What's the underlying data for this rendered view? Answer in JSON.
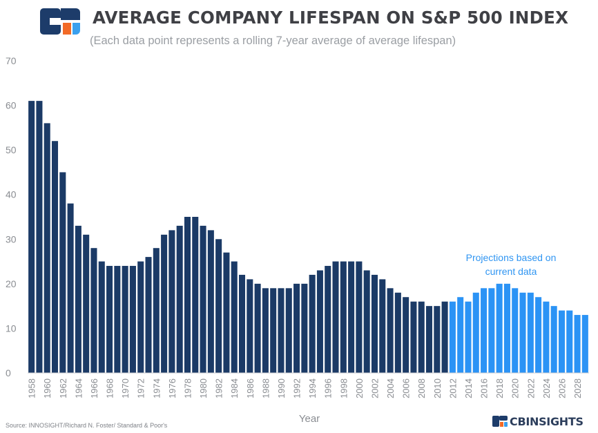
{
  "header": {
    "title": "AVERAGE COMPANY LIFESPAN ON S&P 500 INDEX",
    "subtitle": "(Each data point represents a rolling 7-year average of average lifespan)"
  },
  "colors": {
    "historical": "#1b3a66",
    "projection": "#2b93f5",
    "annotation": "#2f95f2",
    "axis_text": "#8a8d92",
    "logo_navy": "#1d3c6a",
    "logo_orange": "#f26a27",
    "logo_blue": "#3aa0ee"
  },
  "annotation": {
    "line1": "Projections based on",
    "line2": "current data"
  },
  "footer": {
    "source": "Source: INNOSIGHT/Richard N. Foster/ Standard & Poor's",
    "brand": "CBINSIGHTS"
  },
  "icons": {
    "logo": "cb-insights-logo-icon",
    "brand_mark": "cb-insights-mark-icon"
  },
  "chart_data": {
    "type": "bar",
    "title": "AVERAGE COMPANY LIFESPAN ON S&P 500 INDEX",
    "subtitle": "(Each data point represents a rolling 7-year average of average lifespan)",
    "xlabel": "Year",
    "ylabel": "",
    "ylim": [
      0,
      70
    ],
    "yticks": [
      0,
      10,
      20,
      30,
      40,
      50,
      60,
      70
    ],
    "grid": false,
    "categories": [
      1958,
      1959,
      1960,
      1961,
      1962,
      1963,
      1964,
      1965,
      1966,
      1967,
      1968,
      1969,
      1970,
      1971,
      1972,
      1973,
      1974,
      1975,
      1976,
      1977,
      1978,
      1979,
      1980,
      1981,
      1982,
      1983,
      1984,
      1985,
      1986,
      1987,
      1988,
      1989,
      1990,
      1991,
      1992,
      1993,
      1994,
      1995,
      1996,
      1997,
      1998,
      1999,
      2000,
      2001,
      2002,
      2003,
      2004,
      2005,
      2006,
      2007,
      2008,
      2009,
      2010,
      2011,
      2012,
      2013,
      2014,
      2015,
      2016,
      2017,
      2018,
      2019,
      2020,
      2021,
      2022,
      2023,
      2024,
      2025,
      2026,
      2027,
      2028,
      2029
    ],
    "xtick_labels": [
      1958,
      1960,
      1962,
      1964,
      1966,
      1968,
      1970,
      1972,
      1974,
      1976,
      1978,
      1980,
      1982,
      1984,
      1986,
      1988,
      1990,
      1992,
      1994,
      1996,
      1998,
      2000,
      2002,
      2004,
      2006,
      2008,
      2010,
      2012,
      2014,
      2016,
      2018,
      2020,
      2022,
      2024,
      2026,
      2028
    ],
    "values": [
      61,
      61,
      56,
      52,
      45,
      38,
      33,
      31,
      28,
      25,
      24,
      24,
      24,
      24,
      25,
      26,
      28,
      31,
      32,
      33,
      35,
      35,
      33,
      32,
      30,
      27,
      25,
      22,
      21,
      20,
      19,
      19,
      19,
      19,
      20,
      20,
      22,
      23,
      24,
      25,
      25,
      25,
      25,
      23,
      22,
      21,
      19,
      18,
      17,
      16,
      16,
      15,
      15,
      16,
      16,
      17,
      16,
      18,
      19,
      19,
      20,
      20,
      19,
      18,
      18,
      17,
      16,
      15,
      14,
      14,
      13,
      13
    ],
    "series": [
      {
        "name": "Historical",
        "range": [
          1958,
          2011
        ]
      },
      {
        "name": "Projections based on current data",
        "range": [
          2012,
          2029
        ]
      }
    ]
  }
}
